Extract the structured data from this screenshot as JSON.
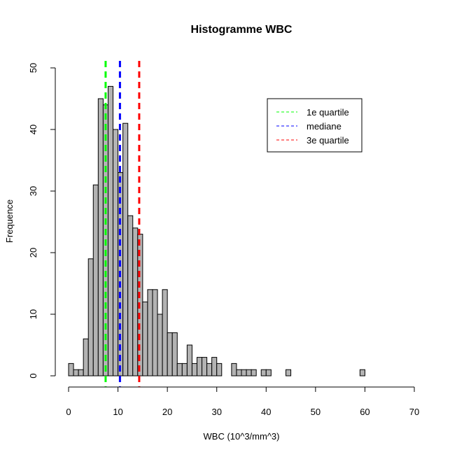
{
  "chart_data": {
    "type": "bar",
    "title": "Histogramme  WBC",
    "xlabel": "WBC (10^3/mm^3)",
    "ylabel": "Frequence",
    "xlim": [
      0,
      70
    ],
    "ylim": [
      0,
      50
    ],
    "x_ticks": [
      0,
      10,
      20,
      30,
      40,
      50,
      60,
      70
    ],
    "y_ticks": [
      0,
      10,
      20,
      30,
      40,
      50
    ],
    "bin_width": 1,
    "bar_color": "#b3b3b3",
    "bins": [
      {
        "x0": 0,
        "count": 2
      },
      {
        "x0": 1,
        "count": 1
      },
      {
        "x0": 2,
        "count": 1
      },
      {
        "x0": 3,
        "count": 6
      },
      {
        "x0": 4,
        "count": 19
      },
      {
        "x0": 5,
        "count": 31
      },
      {
        "x0": 6,
        "count": 45
      },
      {
        "x0": 7,
        "count": 44
      },
      {
        "x0": 8,
        "count": 47
      },
      {
        "x0": 9,
        "count": 40
      },
      {
        "x0": 10,
        "count": 33
      },
      {
        "x0": 11,
        "count": 41
      },
      {
        "x0": 12,
        "count": 26
      },
      {
        "x0": 13,
        "count": 24
      },
      {
        "x0": 14,
        "count": 23
      },
      {
        "x0": 15,
        "count": 12
      },
      {
        "x0": 16,
        "count": 14
      },
      {
        "x0": 17,
        "count": 14
      },
      {
        "x0": 18,
        "count": 10
      },
      {
        "x0": 19,
        "count": 14
      },
      {
        "x0": 20,
        "count": 7
      },
      {
        "x0": 21,
        "count": 7
      },
      {
        "x0": 22,
        "count": 2
      },
      {
        "x0": 23,
        "count": 2
      },
      {
        "x0": 24,
        "count": 5
      },
      {
        "x0": 25,
        "count": 2
      },
      {
        "x0": 26,
        "count": 3
      },
      {
        "x0": 27,
        "count": 3
      },
      {
        "x0": 28,
        "count": 2
      },
      {
        "x0": 29,
        "count": 3
      },
      {
        "x0": 30,
        "count": 2
      },
      {
        "x0": 31,
        "count": 0
      },
      {
        "x0": 32,
        "count": 0
      },
      {
        "x0": 33,
        "count": 2
      },
      {
        "x0": 34,
        "count": 1
      },
      {
        "x0": 35,
        "count": 1
      },
      {
        "x0": 36,
        "count": 1
      },
      {
        "x0": 37,
        "count": 1
      },
      {
        "x0": 38,
        "count": 0
      },
      {
        "x0": 39,
        "count": 1
      },
      {
        "x0": 40,
        "count": 1
      },
      {
        "x0": 41,
        "count": 0
      },
      {
        "x0": 42,
        "count": 0
      },
      {
        "x0": 43,
        "count": 0
      },
      {
        "x0": 44,
        "count": 1
      },
      {
        "x0": 59,
        "count": 1
      }
    ],
    "reference_lines": [
      {
        "name": "1e quartile",
        "x": 7.5,
        "color": "#00ff00"
      },
      {
        "name": "mediane",
        "x": 10.4,
        "color": "#0000ff"
      },
      {
        "name": "3e quartile",
        "x": 14.3,
        "color": "#ff0000"
      }
    ],
    "legend": {
      "position": "top-right"
    }
  }
}
